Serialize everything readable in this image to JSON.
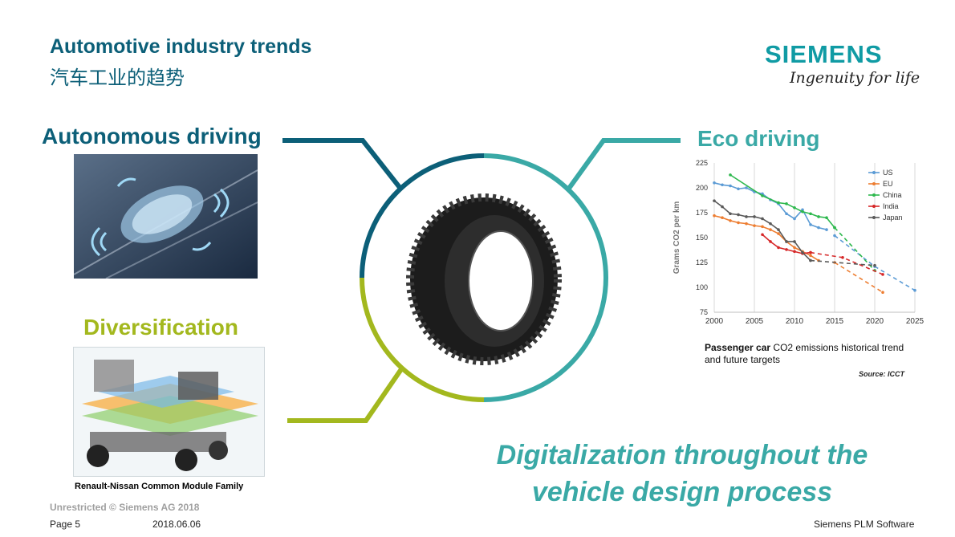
{
  "header": {
    "title": "Automotive industry trends",
    "subtitle": "汽车工业的趋势",
    "brand": "SIEMENS",
    "tagline": "Ingenuity for life"
  },
  "sections": {
    "autonomous": "Autonomous driving",
    "eco": "Eco driving",
    "diversification": "Diversification"
  },
  "diversification_caption": "Renault-Nissan Common Module Family",
  "digitalization": {
    "line1": "Digitalization throughout the",
    "line2": "vehicle design process"
  },
  "colors": {
    "petrol": "#0c5f78",
    "teal": "#3aa9a6",
    "lime": "#a3b81e",
    "brand": "#109ba4"
  },
  "chart_caption": {
    "bold": "Passenger car",
    "rest": " CO2 emissions historical trend",
    "line2": "and future targets",
    "source": "Source: ICCT"
  },
  "chart_data": {
    "type": "line",
    "ylabel": "Grams CO2 per km",
    "xlabel": "",
    "xlim": [
      2000,
      2025
    ],
    "ylim": [
      75,
      225
    ],
    "xticks": [
      2000,
      2005,
      2010,
      2015,
      2020,
      2025
    ],
    "yticks": [
      75,
      100,
      125,
      150,
      175,
      200,
      225
    ],
    "grid": "vertical",
    "legend": "top-right",
    "series": [
      {
        "name": "US",
        "color": "#5b9bd5",
        "x": [
          2000,
          2001,
          2002,
          2003,
          2004,
          2005,
          2006,
          2007,
          2008,
          2009,
          2010,
          2011,
          2012,
          2013,
          2014
        ],
        "y": [
          205,
          203,
          202,
          199,
          200,
          196,
          194,
          188,
          184,
          174,
          169,
          178,
          163,
          160,
          158
        ],
        "target_x": [
          2015,
          2020,
          2025
        ],
        "target_y": [
          152,
          121,
          97
        ]
      },
      {
        "name": "EU",
        "color": "#ed7d31",
        "x": [
          2000,
          2001,
          2002,
          2003,
          2004,
          2005,
          2006,
          2007,
          2008,
          2009,
          2010,
          2011,
          2012,
          2013
        ],
        "y": [
          172,
          170,
          167,
          165,
          164,
          162,
          161,
          158,
          154,
          146,
          140,
          136,
          132,
          127
        ],
        "target_x": [
          2015,
          2021
        ],
        "target_y": [
          125,
          95
        ]
      },
      {
        "name": "China",
        "color": "#2db84d",
        "x": [
          2002,
          2006,
          2008,
          2009,
          2010,
          2011,
          2012,
          2013,
          2014,
          2015
        ],
        "y": [
          213,
          192,
          185,
          184,
          180,
          176,
          174,
          171,
          170,
          160
        ],
        "target_x": [
          2015,
          2020
        ],
        "target_y": [
          160,
          117
        ]
      },
      {
        "name": "India",
        "color": "#d62728",
        "x": [
          2006,
          2007,
          2008,
          2009,
          2010,
          2011,
          2012
        ],
        "y": [
          153,
          146,
          140,
          138,
          136,
          134,
          135
        ],
        "target_x": [
          2012,
          2016,
          2021
        ],
        "target_y": [
          135,
          130,
          113
        ]
      },
      {
        "name": "Japan",
        "color": "#5a5a5a",
        "x": [
          2000,
          2001,
          2002,
          2003,
          2004,
          2005,
          2006,
          2007,
          2008,
          2009,
          2010,
          2011,
          2012
        ],
        "y": [
          187,
          181,
          174,
          173,
          171,
          171,
          169,
          164,
          158,
          146,
          146,
          135,
          127
        ],
        "target_x": [
          2012,
          2020
        ],
        "target_y": [
          127,
          122
        ]
      }
    ]
  },
  "footer": {
    "classification": "Unrestricted © Siemens AG 2018",
    "page": "Page 5",
    "date": "2018.06.06",
    "org": "Siemens PLM Software"
  }
}
